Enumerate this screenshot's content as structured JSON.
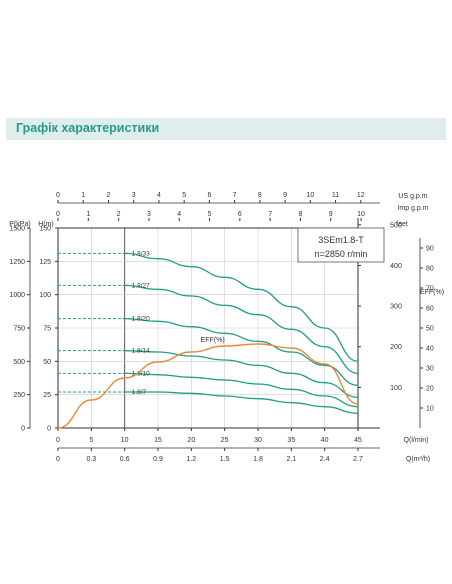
{
  "header": {
    "title": "Графік характеристики"
  },
  "colors": {
    "header_bg": "#dfeeec",
    "title": "#2a9a88",
    "curves": "#1f9e89",
    "eff": "#e8893a",
    "axis": "#333333",
    "grid": "#cccccc"
  },
  "chart_data": {
    "type": "line",
    "model": "3SEm1.8-T",
    "speed": "n=2850 r/min",
    "axes": {
      "q_lmin": {
        "label": "Q(l/min)",
        "ticks": [
          "0",
          "5",
          "10",
          "15",
          "20",
          "25",
          "30",
          "35",
          "40",
          "45"
        ],
        "range": [
          0,
          45
        ]
      },
      "q_m3h": {
        "label": "Q(m³/h)",
        "ticks": [
          "0",
          "0.3",
          "0.6",
          "0.9",
          "1.2",
          "1.5",
          "1.8",
          "2.1",
          "2.4",
          "2.7"
        ],
        "range": [
          0,
          2.7
        ]
      },
      "us_gpm": {
        "label": "US g.p.m",
        "ticks": [
          "0",
          "1",
          "2",
          "3",
          "4",
          "5",
          "6",
          "7",
          "8",
          "9",
          "10",
          "11",
          "12"
        ]
      },
      "imp_gpm": {
        "label": "Imp g.p.m",
        "ticks": [
          "0",
          "1",
          "2",
          "3",
          "4",
          "5",
          "6",
          "7",
          "8",
          "9",
          "10"
        ]
      },
      "head_m": {
        "label": "H(m)",
        "ticks": [
          "0",
          "25",
          "50",
          "75",
          "100",
          "125",
          "150"
        ],
        "range": [
          0,
          150
        ]
      },
      "pressure_kpa": {
        "label": "P(kPa)",
        "ticks": [
          "0",
          "250",
          "500",
          "750",
          "1000",
          "1250",
          "1500"
        ]
      },
      "feet": {
        "label": "feet",
        "ticks": [
          "100",
          "200",
          "300",
          "400",
          "500"
        ]
      },
      "eff": {
        "label": "EFF(%)",
        "ticks": [
          "10",
          "20",
          "30",
          "40",
          "50",
          "60",
          "70",
          "80",
          "90"
        ],
        "range": [
          0,
          100
        ]
      }
    },
    "series": [
      {
        "name": "1.8/33",
        "x": [
          10,
          15,
          20,
          25,
          30,
          35,
          40,
          45
        ],
        "y": [
          131,
          127,
          121,
          113,
          104,
          91,
          75,
          50
        ]
      },
      {
        "name": "1.8/27",
        "x": [
          10,
          15,
          20,
          25,
          30,
          35,
          40,
          45
        ],
        "y": [
          107,
          104,
          99,
          92,
          85,
          74,
          61,
          41
        ]
      },
      {
        "name": "1.8/20",
        "x": [
          10,
          15,
          20,
          25,
          30,
          35,
          40,
          45
        ],
        "y": [
          82,
          80,
          76,
          71,
          65,
          57,
          47,
          32
        ]
      },
      {
        "name": "1.8/14",
        "x": [
          10,
          15,
          20,
          25,
          30,
          35,
          40,
          45
        ],
        "y": [
          58,
          57,
          54,
          51,
          47,
          41,
          34,
          23
        ]
      },
      {
        "name": "1.8/10",
        "x": [
          10,
          15,
          20,
          25,
          30,
          35,
          40,
          45
        ],
        "y": [
          41,
          40,
          38,
          36,
          33,
          29,
          24,
          16
        ]
      },
      {
        "name": "1.8/7",
        "x": [
          10,
          15,
          20,
          25,
          30,
          35,
          40,
          45
        ],
        "y": [
          27,
          27,
          26,
          24,
          22,
          19,
          16,
          11
        ]
      },
      {
        "name": "EFF(%)",
        "axis": "eff",
        "x": [
          0,
          5,
          10,
          15,
          20,
          25,
          30,
          35,
          40,
          45
        ],
        "y": [
          0,
          14,
          25,
          33,
          38,
          41,
          42,
          40,
          32,
          12
        ]
      }
    ]
  }
}
